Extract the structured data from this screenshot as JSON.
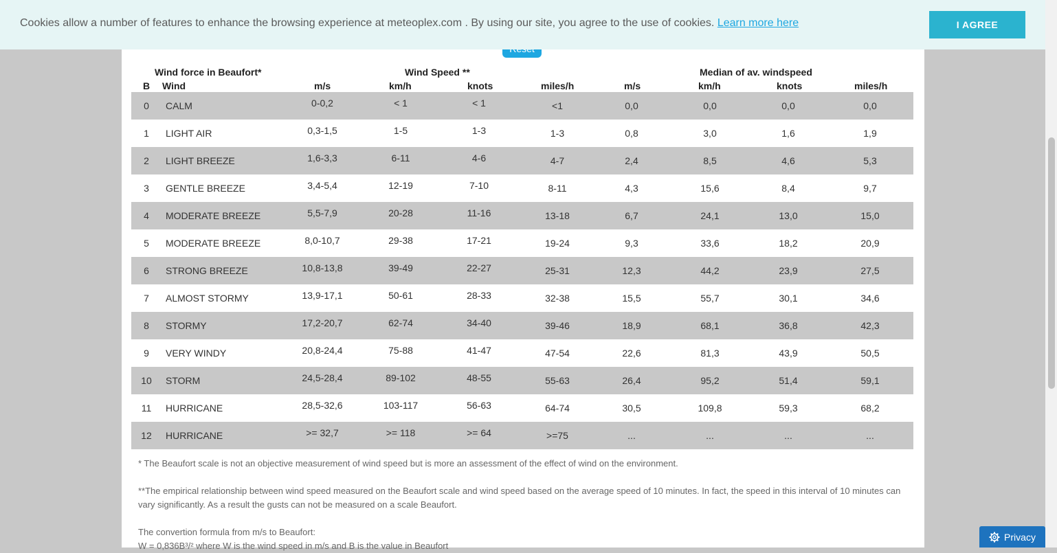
{
  "cookie": {
    "text": "Cookies allow a number of features to enhance the browsing experience at meteoplex.com . By using our site, you agree to the use of cookies.",
    "link": "Learn more here",
    "agree": "I AGREE"
  },
  "reset_label": "Reset",
  "headers": {
    "group1": "Wind force in Beaufort*",
    "group2": "Wind Speed **",
    "group3": "Median of av. windspeed",
    "cols": [
      "B",
      "Wind",
      "m/s",
      "km/h",
      "knots",
      "miles/h",
      "m/s",
      "km/h",
      "knots",
      "miles/h"
    ]
  },
  "rows": [
    {
      "b": "0",
      "wind": "CALM",
      "ms": "0-0,2",
      "kmh": "< 1",
      "kn": "< 1",
      "mph": "<1",
      "med_ms": "0,0",
      "med_kmh": "0,0",
      "med_kn": "0,0",
      "med_mph": "0,0"
    },
    {
      "b": "1",
      "wind": "LIGHT AIR",
      "ms": "0,3-1,5",
      "kmh": "1-5",
      "kn": "1-3",
      "mph": "1-3",
      "med_ms": "0,8",
      "med_kmh": "3,0",
      "med_kn": "1,6",
      "med_mph": "1,9"
    },
    {
      "b": "2",
      "wind": "LIGHT BREEZE",
      "ms": "1,6-3,3",
      "kmh": "6-11",
      "kn": "4-6",
      "mph": "4-7",
      "med_ms": "2,4",
      "med_kmh": "8,5",
      "med_kn": "4,6",
      "med_mph": "5,3"
    },
    {
      "b": "3",
      "wind": "GENTLE BREEZE",
      "ms": "3,4-5,4",
      "kmh": "12-19",
      "kn": "7-10",
      "mph": "8-11",
      "med_ms": "4,3",
      "med_kmh": "15,6",
      "med_kn": "8,4",
      "med_mph": "9,7"
    },
    {
      "b": "4",
      "wind": "MODERATE BREEZE",
      "ms": "5,5-7,9",
      "kmh": "20-28",
      "kn": "11-16",
      "mph": "13-18",
      "med_ms": "6,7",
      "med_kmh": "24,1",
      "med_kn": "13,0",
      "med_mph": "15,0"
    },
    {
      "b": "5",
      "wind": "MODERATE BREEZE",
      "ms": "8,0-10,7",
      "kmh": "29-38",
      "kn": "17-21",
      "mph": "19-24",
      "med_ms": "9,3",
      "med_kmh": "33,6",
      "med_kn": "18,2",
      "med_mph": "20,9"
    },
    {
      "b": "6",
      "wind": "STRONG BREEZE",
      "ms": "10,8-13,8",
      "kmh": "39-49",
      "kn": "22-27",
      "mph": "25-31",
      "med_ms": "12,3",
      "med_kmh": "44,2",
      "med_kn": "23,9",
      "med_mph": "27,5"
    },
    {
      "b": "7",
      "wind": "ALMOST STORMY",
      "ms": "13,9-17,1",
      "kmh": "50-61",
      "kn": "28-33",
      "mph": "32-38",
      "med_ms": "15,5",
      "med_kmh": "55,7",
      "med_kn": "30,1",
      "med_mph": "34,6"
    },
    {
      "b": "8",
      "wind": "STORMY",
      "ms": "17,2-20,7",
      "kmh": "62-74",
      "kn": "34-40",
      "mph": "39-46",
      "med_ms": "18,9",
      "med_kmh": "68,1",
      "med_kn": "36,8",
      "med_mph": "42,3"
    },
    {
      "b": "9",
      "wind": "VERY WINDY",
      "ms": "20,8-24,4",
      "kmh": "75-88",
      "kn": "41-47",
      "mph": "47-54",
      "med_ms": "22,6",
      "med_kmh": "81,3",
      "med_kn": "43,9",
      "med_mph": "50,5"
    },
    {
      "b": "10",
      "wind": "STORM",
      "ms": "24,5-28,4",
      "kmh": "89-102",
      "kn": "48-55",
      "mph": "55-63",
      "med_ms": "26,4",
      "med_kmh": "95,2",
      "med_kn": "51,4",
      "med_mph": "59,1"
    },
    {
      "b": "11",
      "wind": "HURRICANE",
      "ms": "28,5-32,6",
      "kmh": "103-117",
      "kn": "56-63",
      "mph": "64-74",
      "med_ms": "30,5",
      "med_kmh": "109,8",
      "med_kn": "59,3",
      "med_mph": "68,2"
    },
    {
      "b": "12",
      "wind": "HURRICANE",
      "ms": ">= 32,7",
      "kmh": ">= 118",
      "kn": ">= 64",
      "mph": ">=75",
      "med_ms": "...",
      "med_kmh": "...",
      "med_kn": "...",
      "med_mph": "..."
    }
  ],
  "notes": {
    "n1": "* The Beaufort scale is not an objective measurement of wind speed but is more an assessment of the effect of wind on the environment.",
    "n2": "**The empirical relationship between wind speed measured on the Beaufort scale and wind speed based on the average speed of 10 minutes. In fact, the speed in this interval of 10 minutes can vary significantly. As a result the gusts can not be measured on a scale Beaufort.",
    "n3": "The convertion formula from m/s to Beaufort:",
    "n4": "W = 0,836B³/² where W is the wind speed in m/s and B is the value in Beaufort"
  },
  "privacy_label": "Privacy",
  "colors": {
    "accent": "#1ea7e1",
    "agree": "#2bb3cf",
    "row_shade": "#c8c8c8",
    "privacy": "#1e73be"
  }
}
